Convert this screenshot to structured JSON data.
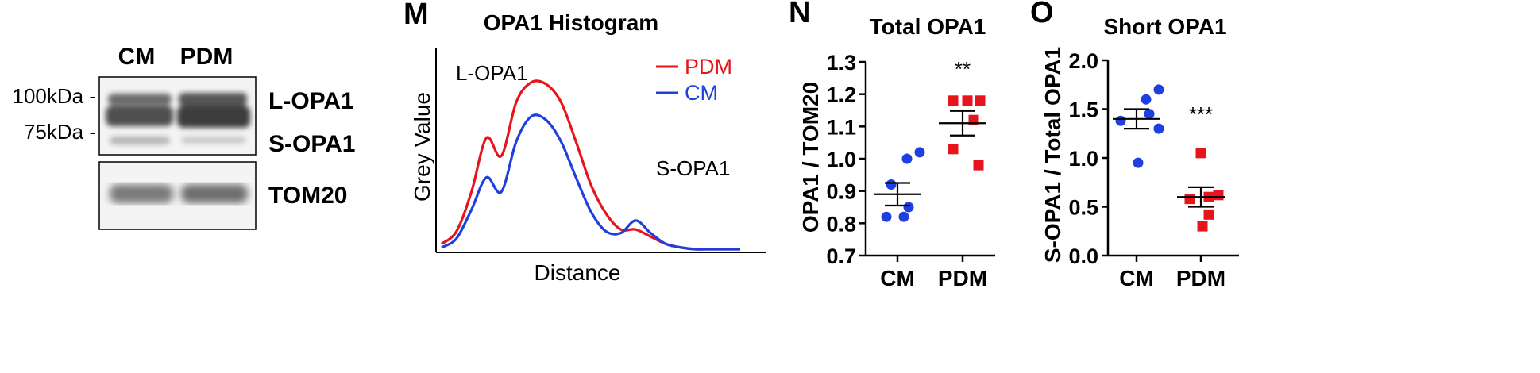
{
  "blot": {
    "lanes": [
      "CM",
      "PDM"
    ],
    "markers": [
      "100kDa -",
      "75kDa -"
    ],
    "top_labels": [
      "L-OPA1",
      "S-OPA1"
    ],
    "bottom_label": "TOM20"
  },
  "colors": {
    "red": "#e8141b",
    "blue": "#1f3fe0",
    "black": "#000000"
  },
  "chart_data": [
    {
      "panel": "M",
      "type": "line",
      "title": "OPA1 Histogram",
      "xlabel": "Distance",
      "ylabel": "Grey Value",
      "annotations": [
        "L-OPA1",
        "S-OPA1"
      ],
      "legend": "top-right",
      "x": [
        0,
        5,
        10,
        15,
        20,
        25,
        30,
        35,
        40,
        45,
        50,
        55,
        60,
        65,
        70,
        75,
        80,
        85,
        90,
        95,
        100
      ],
      "series": [
        {
          "name": "PDM",
          "color": "#e8141b",
          "values": [
            3,
            10,
            32,
            62,
            52,
            82,
            93,
            92,
            82,
            60,
            36,
            20,
            11,
            11,
            7,
            3,
            1,
            0,
            0,
            0,
            0
          ]
        },
        {
          "name": "CM",
          "color": "#1f3fe0",
          "values": [
            1,
            6,
            22,
            40,
            32,
            60,
            74,
            72,
            60,
            40,
            21,
            10,
            9,
            16,
            9,
            3,
            1,
            0,
            0,
            0,
            0
          ]
        }
      ]
    },
    {
      "panel": "N",
      "type": "scatter",
      "title": "Total OPA1",
      "ylabel": "OPA1 / TOM20",
      "categories": [
        "CM",
        "PDM"
      ],
      "ylim": [
        0.7,
        1.3
      ],
      "yticks": [
        "0.7",
        "0.8",
        "0.9",
        "1.0",
        "1.1",
        "1.2",
        "1.3"
      ],
      "significance": [
        "",
        "**"
      ],
      "groups": [
        {
          "category": "CM",
          "color": "#1f3fe0",
          "points": [
            0.82,
            0.82,
            0.85,
            0.92,
            1.0,
            1.02
          ],
          "mean": 0.89,
          "sem": 0.035
        },
        {
          "category": "PDM",
          "color": "#e8141b",
          "points": [
            0.98,
            1.03,
            1.12,
            1.18,
            1.18,
            1.18
          ],
          "mean": 1.11,
          "sem": 0.038
        }
      ]
    },
    {
      "panel": "O",
      "type": "scatter",
      "title": "Short OPA1",
      "ylabel": "S-OPA1 / Total OPA1",
      "categories": [
        "CM",
        "PDM"
      ],
      "ylim": [
        0.0,
        2.0
      ],
      "yticks": [
        "0.0",
        "0.5",
        "1.0",
        "1.5",
        "2.0"
      ],
      "significance": [
        "",
        "***"
      ],
      "groups": [
        {
          "category": "CM",
          "color": "#1f3fe0",
          "points": [
            0.95,
            1.3,
            1.38,
            1.45,
            1.6,
            1.7
          ],
          "mean": 1.4,
          "sem": 0.1
        },
        {
          "category": "PDM",
          "color": "#e8141b",
          "points": [
            0.3,
            0.42,
            0.58,
            0.6,
            0.62,
            1.05
          ],
          "mean": 0.6,
          "sem": 0.1
        }
      ]
    }
  ]
}
